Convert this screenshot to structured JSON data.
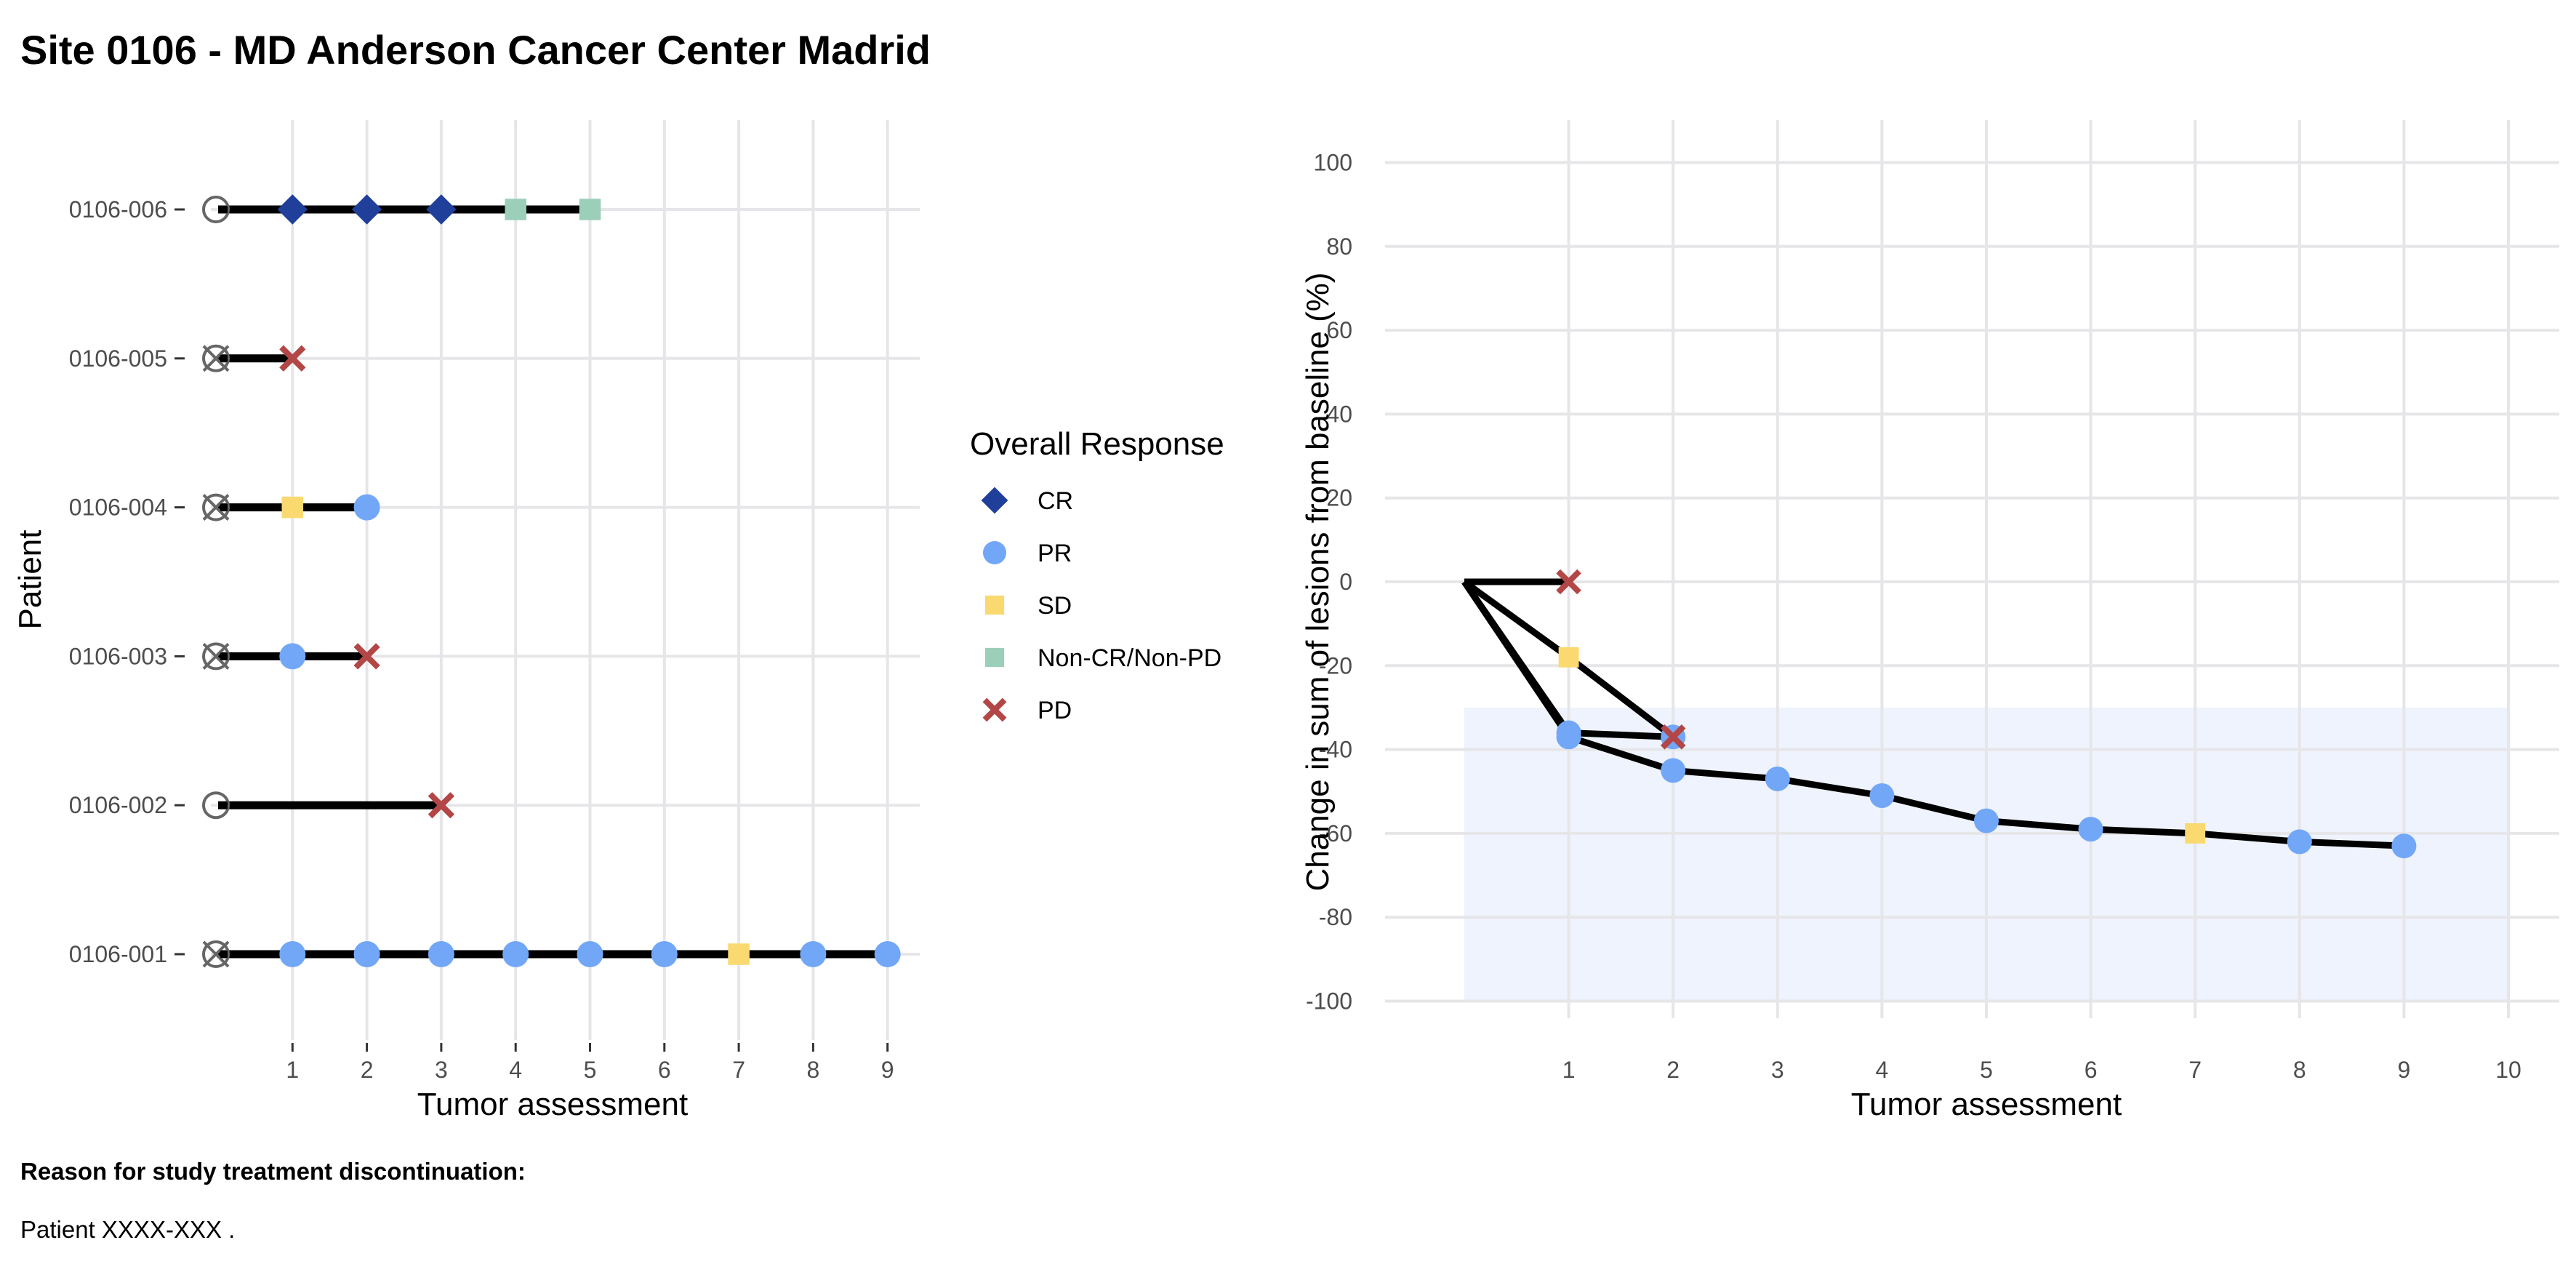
{
  "page": {
    "title": "Site 0106 - MD Anderson Cancer Center Madrid",
    "note_title": "Reason for study treatment discontinuation:",
    "note_text": "Patient XXXX-XXX ."
  },
  "colors": {
    "CR": "#1f3f9a",
    "PR": "#72a7f7",
    "SD": "#fad970",
    "Non-CR/Non-PD": "#9ccfb9",
    "PD": "#b34646",
    "line": "#000000",
    "grid": "#e6e6e9",
    "shade": "#eef3fd"
  },
  "legend": {
    "title": "Overall Response",
    "items": [
      {
        "label": "CR",
        "shape": "diamond"
      },
      {
        "label": "PR",
        "shape": "circle"
      },
      {
        "label": "SD",
        "shape": "square"
      },
      {
        "label": "Non-CR/Non-PD",
        "shape": "square"
      },
      {
        "label": "PD",
        "shape": "cross"
      }
    ]
  },
  "chart_data": [
    {
      "type": "scatter",
      "title": "",
      "xlabel": "Tumor assessment",
      "ylabel": "Patient",
      "xticks": [
        1,
        2,
        3,
        4,
        5,
        6,
        7,
        8,
        9
      ],
      "xlim": [
        -0.2,
        9.5
      ],
      "grid": true,
      "patients": [
        {
          "id": "0106-006",
          "crossed_start": false,
          "end": 5,
          "points": [
            {
              "x": 1,
              "r": "CR"
            },
            {
              "x": 2,
              "r": "CR"
            },
            {
              "x": 3,
              "r": "CR"
            },
            {
              "x": 4,
              "r": "Non-CR/Non-PD"
            },
            {
              "x": 5,
              "r": "Non-CR/Non-PD"
            }
          ]
        },
        {
          "id": "0106-005",
          "crossed_start": true,
          "end": 1,
          "points": [
            {
              "x": 1,
              "r": "PD"
            }
          ]
        },
        {
          "id": "0106-004",
          "crossed_start": true,
          "end": 2,
          "points": [
            {
              "x": 1,
              "r": "SD"
            },
            {
              "x": 2,
              "r": "PR"
            }
          ]
        },
        {
          "id": "0106-003",
          "crossed_start": true,
          "end": 2,
          "points": [
            {
              "x": 1,
              "r": "PR"
            },
            {
              "x": 2,
              "r": "PD"
            }
          ]
        },
        {
          "id": "0106-002",
          "crossed_start": false,
          "end": 3,
          "points": [
            {
              "x": 3,
              "r": "PD"
            }
          ]
        },
        {
          "id": "0106-001",
          "crossed_start": true,
          "end": 9,
          "points": [
            {
              "x": 1,
              "r": "PR"
            },
            {
              "x": 2,
              "r": "PR"
            },
            {
              "x": 3,
              "r": "PR"
            },
            {
              "x": 4,
              "r": "PR"
            },
            {
              "x": 5,
              "r": "PR"
            },
            {
              "x": 6,
              "r": "PR"
            },
            {
              "x": 7,
              "r": "SD"
            },
            {
              "x": 8,
              "r": "PR"
            },
            {
              "x": 9,
              "r": "PR"
            }
          ]
        }
      ]
    },
    {
      "type": "line",
      "title": "",
      "xlabel": "Tumor assessment",
      "ylabel": "Change in sum of lesions from baseline (%)",
      "xticks": [
        1,
        2,
        3,
        4,
        5,
        6,
        7,
        8,
        9,
        10
      ],
      "yticks": [
        100,
        80,
        60,
        40,
        20,
        0,
        -20,
        -40,
        -60,
        -80,
        -100
      ],
      "xlim": [
        -0.2,
        10.5
      ],
      "ylim": [
        -105,
        105
      ],
      "grid": true,
      "shaded_band": {
        "x0": 0,
        "x1": 10,
        "y0": -100,
        "y1": -30
      },
      "series": [
        {
          "points": [
            {
              "x": 0,
              "y": 0
            },
            {
              "x": 1,
              "y": 0,
              "r": "PD"
            }
          ]
        },
        {
          "points": [
            {
              "x": 0,
              "y": 0
            },
            {
              "x": 1,
              "y": -18,
              "r": "SD"
            },
            {
              "x": 2,
              "y": -37,
              "r": "PR"
            }
          ]
        },
        {
          "points": [
            {
              "x": 0,
              "y": 0
            },
            {
              "x": 1,
              "y": -36,
              "r": "PR"
            },
            {
              "x": 2,
              "y": -37,
              "r": "PD"
            }
          ]
        },
        {
          "points": [
            {
              "x": 0,
              "y": 0
            },
            {
              "x": 1,
              "y": -37,
              "r": "PR"
            },
            {
              "x": 2,
              "y": -45,
              "r": "PR"
            },
            {
              "x": 3,
              "y": -47,
              "r": "PR"
            },
            {
              "x": 4,
              "y": -51,
              "r": "PR"
            },
            {
              "x": 5,
              "y": -57,
              "r": "PR"
            },
            {
              "x": 6,
              "y": -59,
              "r": "PR"
            },
            {
              "x": 7,
              "y": -60,
              "r": "SD"
            },
            {
              "x": 8,
              "y": -62,
              "r": "PR"
            },
            {
              "x": 9,
              "y": -63,
              "r": "PR"
            }
          ]
        }
      ]
    }
  ]
}
